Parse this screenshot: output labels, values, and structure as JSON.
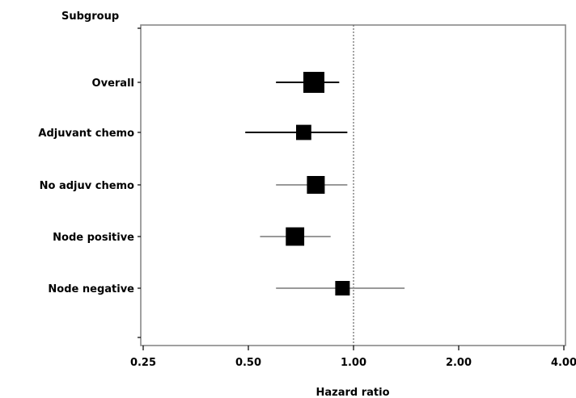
{
  "chart_data": {
    "type": "forest",
    "title": "",
    "ylabel": "Subgroup",
    "xlabel": "Hazard ratio",
    "x_scale": "log2",
    "xlim": [
      0.25,
      4.0
    ],
    "x_ticks": [
      {
        "value": 0.25,
        "label": "0.25"
      },
      {
        "value": 0.5,
        "label": "0.50"
      },
      {
        "value": 1.0,
        "label": "1.00"
      },
      {
        "value": 2.0,
        "label": "2.00"
      },
      {
        "value": 4.0,
        "label": "4.00"
      }
    ],
    "reference_line": 1.0,
    "grid": false,
    "subgroups": [
      {
        "label": "Overall",
        "hr": 0.77,
        "lower": 0.6,
        "upper": 0.91,
        "weight": 1.0,
        "ci_color": "#000000"
      },
      {
        "label": "Adjuvant chemo",
        "hr": 0.72,
        "lower": 0.49,
        "upper": 0.96,
        "weight": 0.55,
        "ci_color": "#000000"
      },
      {
        "label": "No adjuv chemo",
        "hr": 0.78,
        "lower": 0.6,
        "upper": 0.96,
        "weight": 0.75,
        "ci_color": "#999999"
      },
      {
        "label": "Node positive",
        "hr": 0.68,
        "lower": 0.54,
        "upper": 0.86,
        "weight": 0.8,
        "ci_color": "#999999"
      },
      {
        "label": "Node negative",
        "hr": 0.93,
        "lower": 0.6,
        "upper": 1.4,
        "weight": 0.5,
        "ci_color": "#999999"
      }
    ]
  }
}
